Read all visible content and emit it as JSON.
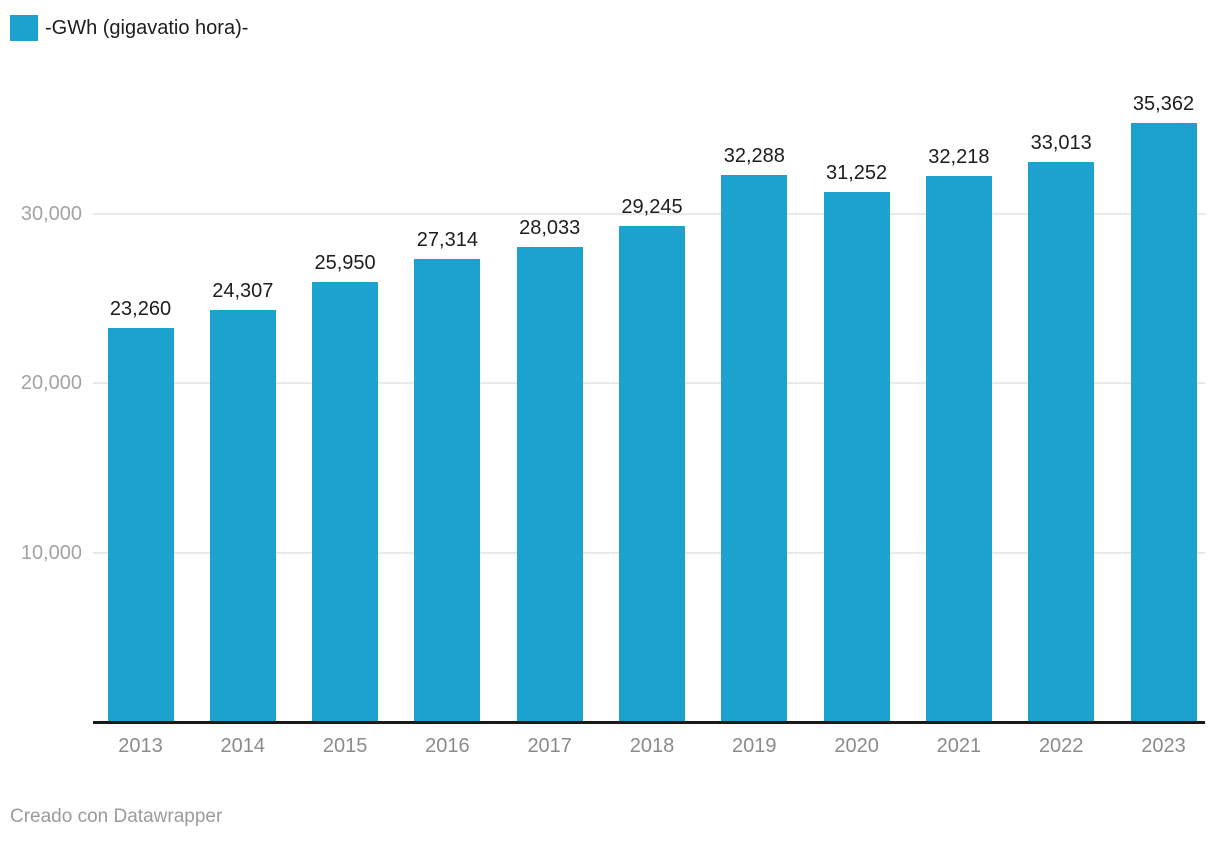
{
  "legend": {
    "label": "-GWh (gigavatio hora)-",
    "swatch_color": "#1BA2CE"
  },
  "footer": {
    "credit": "Creado con Datawrapper"
  },
  "chart_data": {
    "type": "bar",
    "title": "",
    "series_name": "-GWh (gigavatio hora)-",
    "categories": [
      "2013",
      "2014",
      "2015",
      "2016",
      "2017",
      "2018",
      "2019",
      "2020",
      "2021",
      "2022",
      "2023"
    ],
    "values": [
      23260,
      24307,
      25950,
      27314,
      28033,
      29245,
      32288,
      31252,
      32218,
      33013,
      35362
    ],
    "value_labels": [
      "23,260",
      "24,307",
      "25,950",
      "27,314",
      "28,033",
      "29,245",
      "32,288",
      "31,252",
      "32,218",
      "33,013",
      "35,362"
    ],
    "bar_color": "#1BA2CE",
    "xlabel": "",
    "ylabel": "",
    "ylim": [
      0,
      36000
    ],
    "grid": true,
    "legend_position": "top-left",
    "y_ticks": [
      {
        "value": 10000,
        "label": "10,000"
      },
      {
        "value": 20000,
        "label": "20,000"
      },
      {
        "value": 30000,
        "label": "30,000"
      }
    ]
  }
}
